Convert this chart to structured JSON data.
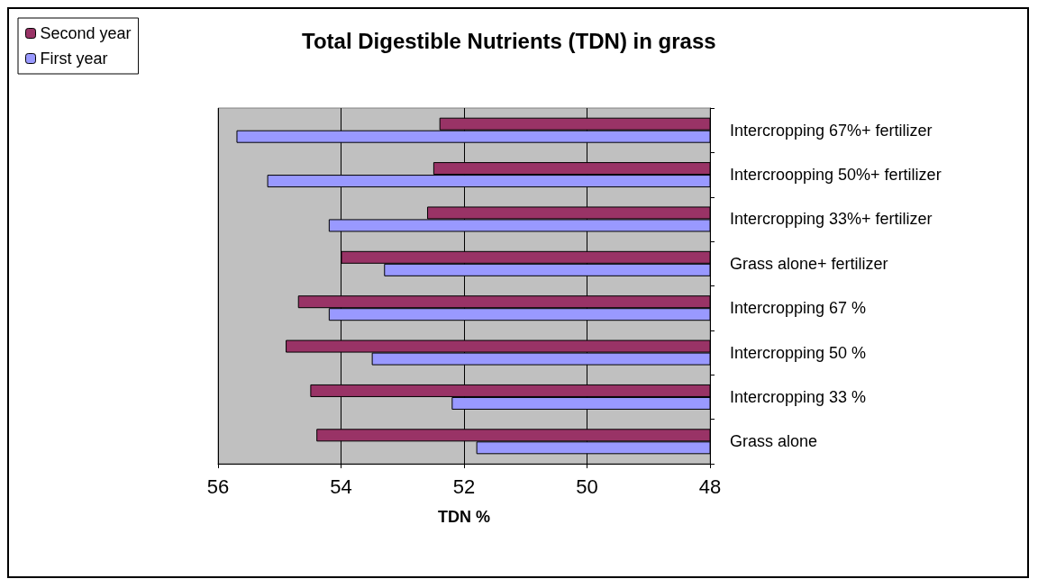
{
  "chart_data": {
    "type": "bar",
    "orientation": "horizontal",
    "title": "Total Digestible Nutrients (TDN) in grass",
    "xlabel": "TDN %",
    "categories": [
      "Intercropping 67%+ fertilizer",
      "Intercroopping 50%+ fertilizer",
      "Intercropping 33%+ fertilizer",
      "Grass alone+ fertilizer",
      "Intercropping 67 %",
      "Intercropping 50 %",
      "Intercropping 33 %",
      "Grass alone"
    ],
    "series": [
      {
        "name": "Second year",
        "color": "#993366",
        "values": [
          52.4,
          52.5,
          52.6,
          54.0,
          54.7,
          54.9,
          54.5,
          54.4
        ]
      },
      {
        "name": "First year",
        "color": "#9999ff",
        "values": [
          55.7,
          55.2,
          54.2,
          53.3,
          54.2,
          53.5,
          52.2,
          51.8
        ]
      }
    ],
    "xlim": [
      56,
      48
    ],
    "xticks": [
      56,
      54,
      52,
      50,
      48
    ],
    "grid": "x",
    "legend": "top left"
  }
}
